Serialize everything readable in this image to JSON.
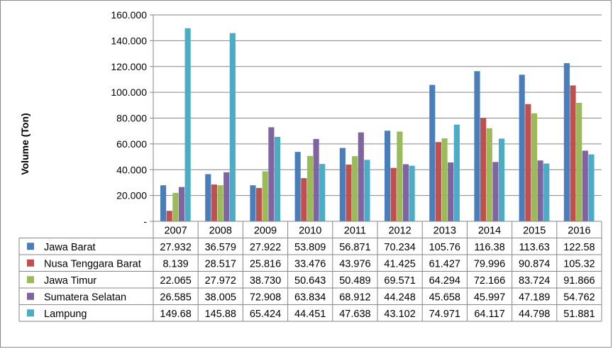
{
  "chart_data": {
    "type": "bar",
    "title": "",
    "xlabel": "",
    "ylabel": "Volume (Ton)",
    "ylim": [
      0,
      160
    ],
    "yticks": [
      {
        "value": 0,
        "label": "-"
      },
      {
        "value": 20,
        "label": "20.000"
      },
      {
        "value": 40,
        "label": "40.000"
      },
      {
        "value": 60,
        "label": "60.000"
      },
      {
        "value": 80,
        "label": "80.000"
      },
      {
        "value": 100,
        "label": "100.000"
      },
      {
        "value": 120,
        "label": "120.000"
      },
      {
        "value": 140,
        "label": "140.000"
      },
      {
        "value": 160,
        "label": "160.000"
      }
    ],
    "grid": true,
    "legend": "data-table-below",
    "categories": [
      "2007",
      "2008",
      "2009",
      "2010",
      "2011",
      "2012",
      "2013",
      "2014",
      "2015",
      "2016"
    ],
    "series": [
      {
        "name": "Jawa Barat",
        "color": "#4a7ebb",
        "values": [
          27.932,
          36.579,
          27.922,
          53.809,
          56.871,
          70.234,
          105.76,
          116.38,
          113.63,
          122.58
        ],
        "labels": [
          "27.932",
          "36.579",
          "27.922",
          "53.809",
          "56.871",
          "70.234",
          "105.76",
          "116.38",
          "113.63",
          "122.58"
        ]
      },
      {
        "name": "Nusa Tenggara Barat",
        "color": "#c0504d",
        "values": [
          8.139,
          28.517,
          25.816,
          33.476,
          43.976,
          41.425,
          61.427,
          79.996,
          90.874,
          105.32
        ],
        "labels": [
          "8.139",
          "28.517",
          "25.816",
          "33.476",
          "43.976",
          "41.425",
          "61.427",
          "79.996",
          "90.874",
          "105.32"
        ]
      },
      {
        "name": "Jawa Timur",
        "color": "#9bbb59",
        "values": [
          22.065,
          27.972,
          38.73,
          50.643,
          50.489,
          69.571,
          64.294,
          72.166,
          83.724,
          91.866
        ],
        "labels": [
          "22.065",
          "27.972",
          "38.730",
          "50.643",
          "50.489",
          "69.571",
          "64.294",
          "72.166",
          "83.724",
          "91.866"
        ]
      },
      {
        "name": "Sumatera Selatan",
        "color": "#8064a2",
        "values": [
          26.585,
          38.005,
          72.908,
          63.834,
          68.912,
          44.248,
          45.658,
          45.997,
          47.189,
          54.762
        ],
        "labels": [
          "26.585",
          "38.005",
          "72.908",
          "63.834",
          "68.912",
          "44.248",
          "45.658",
          "45.997",
          "47.189",
          "54.762"
        ]
      },
      {
        "name": "Lampung",
        "color": "#4bacc6",
        "values": [
          149.68,
          145.88,
          65.424,
          44.451,
          47.638,
          43.102,
          74.971,
          64.117,
          44.798,
          51.881
        ],
        "labels": [
          "149.68",
          "145.88",
          "65.424",
          "44.451",
          "47.638",
          "43.102",
          "74.971",
          "64.117",
          "44.798",
          "51.881"
        ]
      }
    ]
  }
}
